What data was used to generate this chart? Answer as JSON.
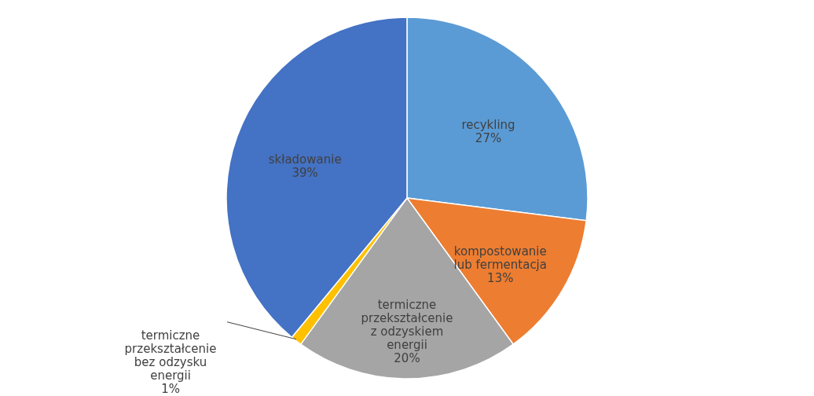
{
  "chart_data": {
    "type": "pie",
    "categories": [
      "recykling",
      "kompostowanie lub fermentacja",
      "termiczne przekształcenie z odzyskiem energii",
      "termiczne przekształcenie bez odzysku energii",
      "składowanie"
    ],
    "values": [
      27,
      13,
      20,
      1,
      39
    ],
    "value_labels": [
      "27%",
      "13%",
      "20%",
      "1%",
      "39%"
    ],
    "colors": [
      "#5b9bd5",
      "#ed7d31",
      "#a5a5a5",
      "#ffc000",
      "#4472c4"
    ]
  }
}
